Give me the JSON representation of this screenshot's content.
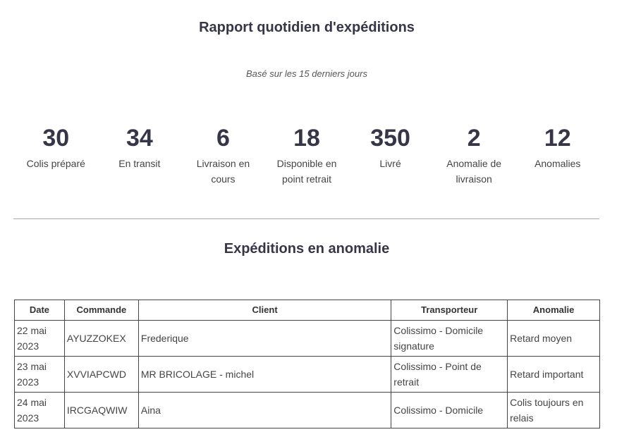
{
  "header": {
    "title": "Rapport quotidien d'expéditions",
    "subtitle": "Basé sur les 15 derniers jours"
  },
  "stats": [
    {
      "value": "30",
      "label": "Colis préparé"
    },
    {
      "value": "34",
      "label": "En transit"
    },
    {
      "value": "6",
      "label": "Livraison en cours"
    },
    {
      "value": "18",
      "label": "Disponible en point retrait"
    },
    {
      "value": "350",
      "label": "Livré"
    },
    {
      "value": "2",
      "label": "Anomalie de livraison"
    },
    {
      "value": "12",
      "label": "Anomalies"
    }
  ],
  "anomalies": {
    "title": "Expéditions en anomalie",
    "columns": [
      "Date",
      "Commande",
      "Client",
      "Transporteur",
      "Anomalie"
    ],
    "rows": [
      [
        "22 mai 2023",
        "AYUZZOKEX",
        "Frederique",
        "Colissimo - Domicile signature",
        "Retard moyen"
      ],
      [
        "23 mai 2023",
        "XVVIAPCWD",
        "MR BRICOLAGE - michel",
        "Colissimo - Point de retrait",
        "Retard important"
      ],
      [
        "24 mai 2023",
        "IRCGAQWIW",
        "Aina",
        "Colissimo - Domicile",
        "Colis toujours en relais"
      ]
    ]
  }
}
